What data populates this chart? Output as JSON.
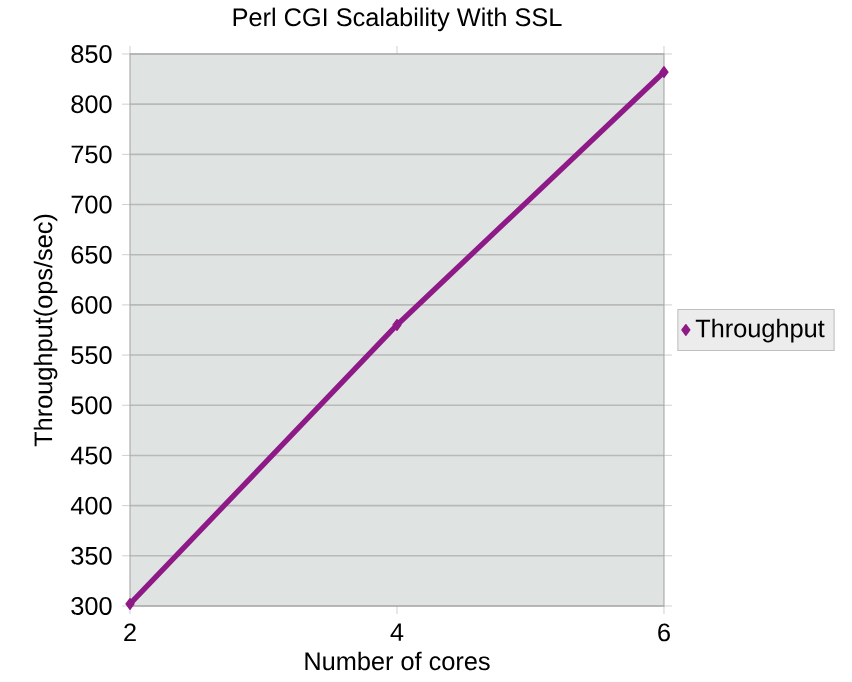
{
  "chart_data": {
    "type": "line",
    "title": "Perl CGI Scalability With SSL",
    "xlabel": "Number of cores",
    "ylabel": "Throughput(ops/sec)",
    "x": [
      2,
      4,
      6
    ],
    "series": [
      {
        "name": "Throughput",
        "color": "#8e1a87",
        "values": [
          302,
          580,
          832
        ]
      }
    ],
    "xlim": [
      2,
      6
    ],
    "xticks": [
      2,
      4,
      6
    ],
    "ylim": [
      300,
      850
    ],
    "yticks": [
      300,
      350,
      400,
      450,
      500,
      550,
      600,
      650,
      700,
      750,
      800,
      850
    ],
    "grid": "y",
    "legend": "right",
    "marker": "diamond",
    "line_style": "solid"
  }
}
